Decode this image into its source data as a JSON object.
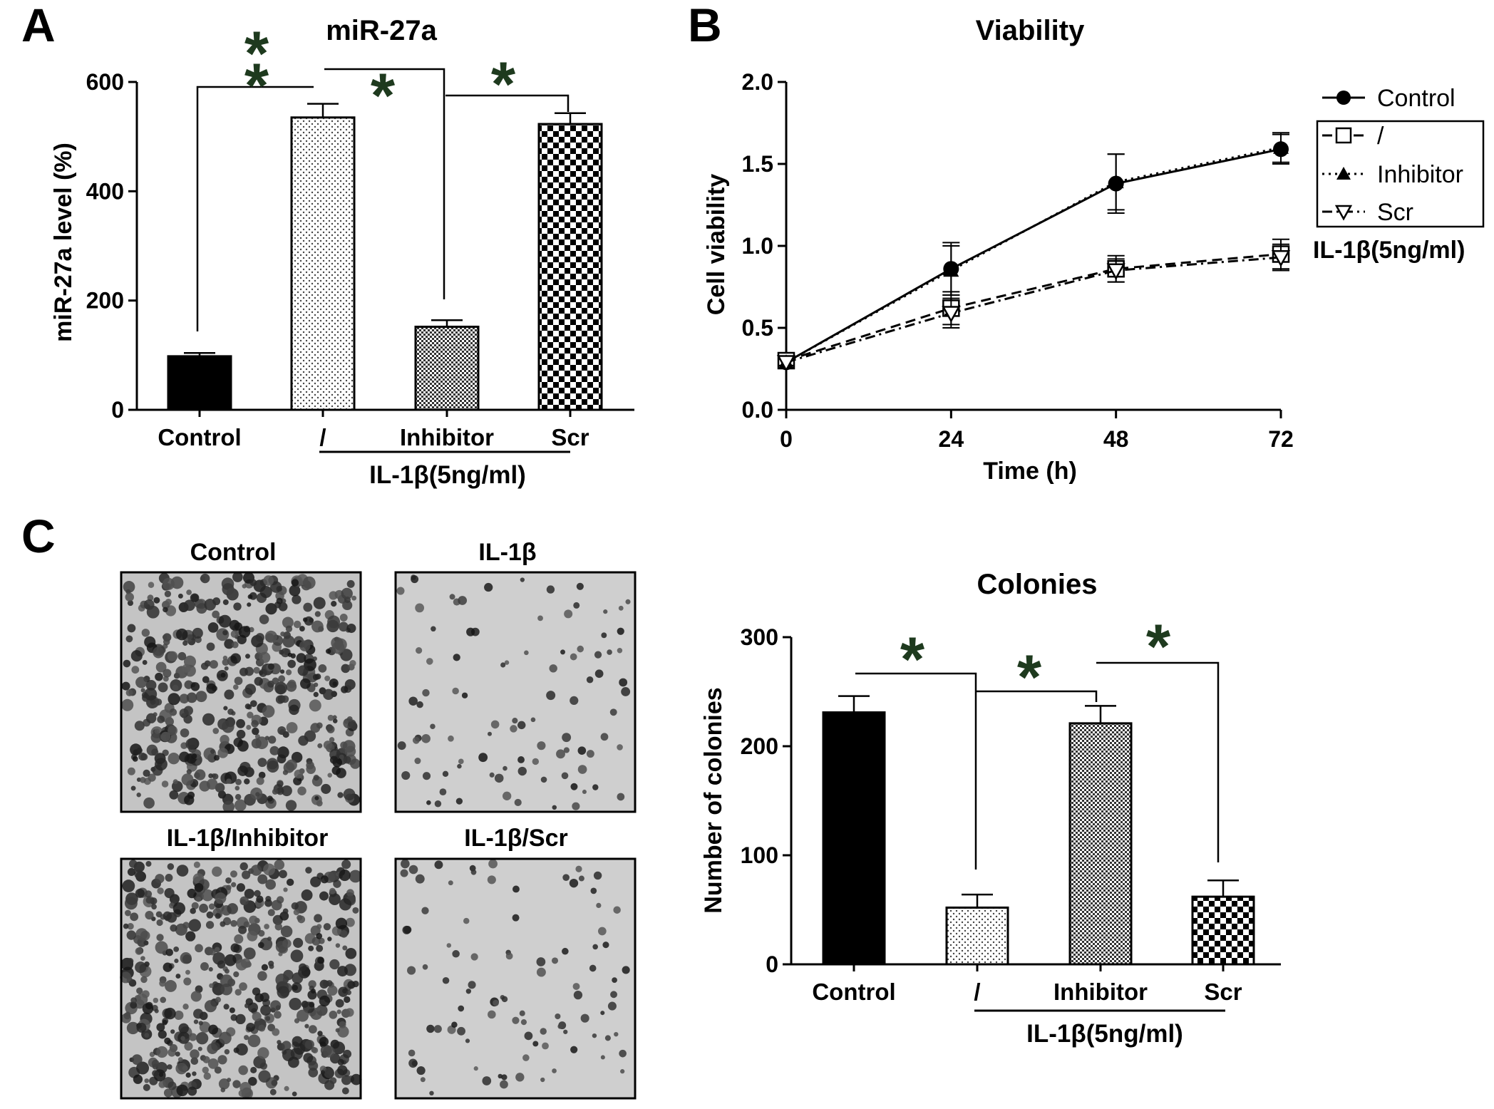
{
  "colors": {
    "control": "#000000",
    "il1b": "#ffffff",
    "inhibitor": "#7a7a7a",
    "scr": "#101010",
    "star": "#1e3a1e",
    "plate_dark": "#6f6f6f",
    "plate_light": "#c4c4c4"
  },
  "panel_a": {
    "letter": "A",
    "group_label": "IL-1β(5ng/ml)",
    "stars": [
      "*",
      "*",
      "*",
      "*"
    ]
  },
  "panel_b": {
    "letter": "B",
    "group_label": "IL-1β(5ng/ml)"
  },
  "panel_c": {
    "letter": "C",
    "group_label": "IL-1β(5ng/ml)",
    "stars": [
      "*",
      "*",
      "*"
    ],
    "plates": [
      {
        "label": "Control",
        "density": "high"
      },
      {
        "label": "IL-1β",
        "density": "low"
      },
      {
        "label": "IL-1β/Inhibitor",
        "density": "high"
      },
      {
        "label": "IL-1β/Scr",
        "density": "low"
      }
    ]
  },
  "chart_data": [
    {
      "type": "bar",
      "title": "miR-27a",
      "xlabel": "",
      "ylabel": "miR-27a level (%)",
      "categories": [
        "Control",
        "/",
        "Inhibitor",
        "Scr"
      ],
      "values": [
        98,
        535,
        152,
        523
      ],
      "errors": [
        6,
        25,
        12,
        20
      ],
      "ylim": [
        0,
        600
      ],
      "yticks": [
        "0",
        "200",
        "400",
        "600"
      ],
      "fills": [
        "solid",
        "dots",
        "grid",
        "checker"
      ]
    },
    {
      "type": "line",
      "title": "Viability",
      "xlabel": "Time (h)",
      "ylabel": "Cell viability",
      "xlim": [
        0,
        72
      ],
      "ylim": [
        0,
        2.0
      ],
      "xticks": [
        "0",
        "24",
        "48",
        "72"
      ],
      "yticks": [
        "0.0",
        "0.5",
        "1.0",
        "1.5",
        "2.0"
      ],
      "x": [
        0,
        24,
        48,
        72
      ],
      "legend_position": "right",
      "series": [
        {
          "name": "Control",
          "values": [
            0.29,
            0.86,
            1.38,
            1.59
          ],
          "errors": [
            0.02,
            0.16,
            0.18,
            0.09
          ],
          "marker": "circle",
          "dash": "solid"
        },
        {
          "name": "/",
          "values": [
            0.3,
            0.62,
            0.86,
            0.95
          ],
          "errors": [
            0.02,
            0.1,
            0.08,
            0.09
          ],
          "marker": "square",
          "dash": "dash"
        },
        {
          "name": "Inhibitor",
          "values": [
            0.29,
            0.85,
            1.39,
            1.6
          ],
          "errors": [
            0.02,
            0.15,
            0.17,
            0.09
          ],
          "marker": "triangle",
          "dash": "dot"
        },
        {
          "name": "Scr",
          "values": [
            0.29,
            0.59,
            0.85,
            0.93
          ],
          "errors": [
            0.02,
            0.09,
            0.07,
            0.08
          ],
          "marker": "triangle-down",
          "dash": "dashdot"
        }
      ]
    },
    {
      "type": "bar",
      "title": "Colonies",
      "xlabel": "",
      "ylabel": "Number of colonies",
      "categories": [
        "Control",
        "/",
        "Inhibitor",
        "Scr"
      ],
      "values": [
        231,
        52,
        221,
        62
      ],
      "errors": [
        15,
        12,
        16,
        15
      ],
      "ylim": [
        0,
        300
      ],
      "yticks": [
        "0",
        "100",
        "200",
        "300"
      ],
      "fills": [
        "solid",
        "dots",
        "grid",
        "checker"
      ]
    }
  ]
}
